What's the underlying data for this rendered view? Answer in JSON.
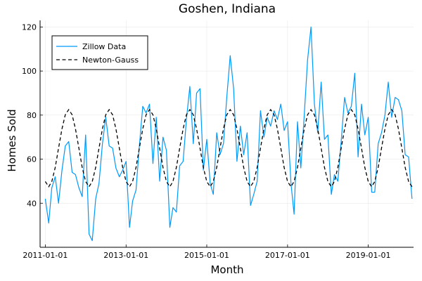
{
  "chart_data": {
    "type": "line",
    "title": "Goshen, Indiana",
    "xlabel": "Month",
    "ylabel": "Homes Sold",
    "xlim": [
      "2010-11-15",
      "2020-02-15"
    ],
    "ylim": [
      20,
      123
    ],
    "x_ticks": [
      "2011-01-01",
      "2013-01-01",
      "2015-01-01",
      "2017-01-01",
      "2019-01-01"
    ],
    "y_ticks": [
      40,
      60,
      80,
      100,
      120
    ],
    "grid": true,
    "legend_position": "top-left",
    "x_start": "2011-01-01",
    "x_step": "1 month",
    "series": [
      {
        "name": "Zillow Data",
        "style": "solid",
        "color": "#009AFA",
        "values": [
          42,
          31,
          47,
          52,
          40,
          55,
          66,
          68,
          54,
          53,
          47,
          43,
          71,
          26,
          23,
          42,
          49,
          67,
          79,
          66,
          65,
          56,
          52,
          55,
          59,
          29,
          41,
          46,
          66,
          84,
          81,
          85,
          58,
          79,
          50,
          70,
          64,
          29,
          38,
          36,
          57,
          59,
          78,
          93,
          67,
          90,
          92,
          55,
          69,
          49,
          44,
          72,
          62,
          67,
          88,
          107,
          92,
          59,
          75,
          62,
          72,
          39,
          44,
          50,
          82,
          70,
          79,
          75,
          82,
          78,
          85,
          73,
          77,
          49,
          35,
          77,
          56,
          80,
          105,
          120,
          85,
          72,
          95,
          69,
          71,
          44,
          53,
          50,
          68,
          88,
          81,
          84,
          99,
          61,
          85,
          71,
          79,
          45,
          45,
          67,
          72,
          80,
          95,
          79,
          88,
          87,
          82,
          62,
          61,
          42
        ]
      },
      {
        "name": "Newton-Gauss",
        "style": "dashed",
        "color": "#000000",
        "model": {
          "mean": 65.0,
          "amplitude": 17.5,
          "period_months": 12,
          "peak_month": 7
        }
      }
    ]
  }
}
